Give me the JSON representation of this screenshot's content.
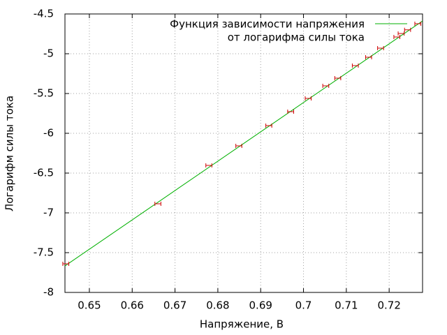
{
  "chart_data": {
    "type": "scatter",
    "xlabel": "Напряжение, В",
    "ylabel": "Логарифм силы тока",
    "xlim": [
      0.6443,
      0.7278
    ],
    "ylim": [
      -8,
      -4.5
    ],
    "xticks": [
      0.65,
      0.66,
      0.67,
      0.68,
      0.69,
      0.7,
      0.71,
      0.72
    ],
    "yticks": [
      -8,
      -7.5,
      -7,
      -6.5,
      -6,
      -5.5,
      -5,
      -4.5
    ],
    "grid": true,
    "legend": "top-right",
    "series": [
      {
        "name": [
          "Функция зависимости напряжения",
          "от логарифма силы тока"
        ],
        "color": "#00b000",
        "kind": "line",
        "x": [
          0.6443,
          0.7278
        ],
        "values": [
          -7.667,
          -4.588
        ]
      },
      {
        "color": "#cc0000",
        "kind": "xerror",
        "x": [
          0.6445,
          0.666,
          0.6779,
          0.6849,
          0.6919,
          0.697,
          0.7011,
          0.7052,
          0.708,
          0.7121,
          0.7152,
          0.718,
          0.7218,
          0.7228,
          0.7243,
          0.7267
        ],
        "values": [
          -7.64,
          -6.886,
          -6.404,
          -6.158,
          -5.904,
          -5.728,
          -5.561,
          -5.404,
          -5.307,
          -5.149,
          -5.044,
          -4.93,
          -4.79,
          -4.746,
          -4.7,
          -4.623
        ],
        "xerr": [
          0.0007,
          0.0007,
          0.0007,
          0.0007,
          0.0007,
          0.0007,
          0.0007,
          0.0007,
          0.0007,
          0.0007,
          0.0007,
          0.0007,
          0.0007,
          0.0007,
          0.0007,
          0.0007
        ]
      }
    ]
  }
}
